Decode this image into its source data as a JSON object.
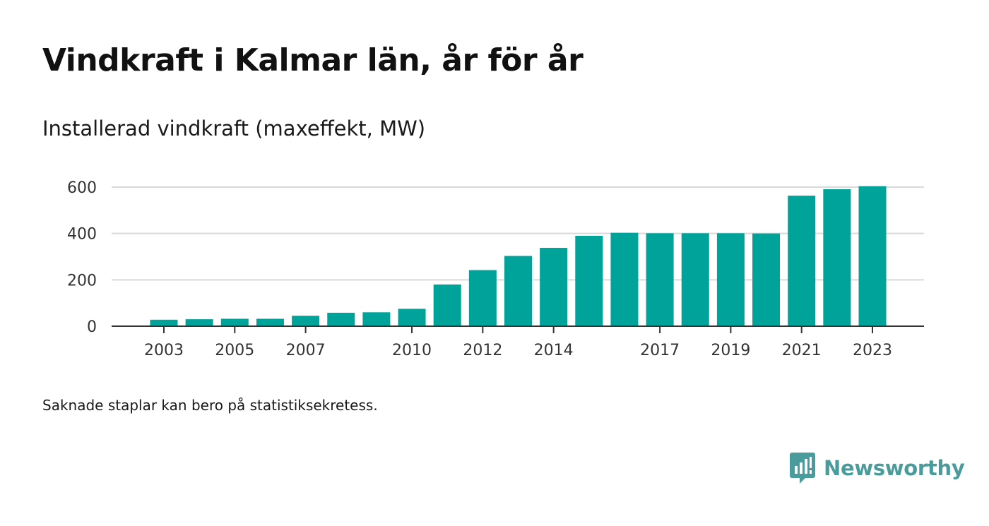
{
  "title": "Vindkraft i Kalmar län, år för år",
  "subtitle": "Installerad vindkraft (maxeffekt, MW)",
  "footnote": "Saknade staplar kan bero på statistiksekretess.",
  "brand": {
    "name": "Newsworthy",
    "icon": "newsworthy-logo-icon",
    "color": "#4a9b9b"
  },
  "chart_data": {
    "type": "bar",
    "title": "Vindkraft i Kalmar län, år för år",
    "subtitle": "Installerad vindkraft (maxeffekt, MW)",
    "xlabel": "",
    "ylabel": "",
    "x": [
      2003,
      2004,
      2005,
      2006,
      2007,
      2008,
      2009,
      2010,
      2011,
      2012,
      2013,
      2014,
      2015,
      2016,
      2017,
      2018,
      2019,
      2020,
      2021,
      2022,
      2023
    ],
    "values": [
      28,
      30,
      32,
      32,
      45,
      58,
      60,
      75,
      180,
      242,
      303,
      338,
      390,
      403,
      401,
      401,
      401,
      400,
      563,
      591,
      604
    ],
    "x_tick_labels": [
      2003,
      2005,
      2007,
      2010,
      2012,
      2014,
      2017,
      2019,
      2021,
      2023
    ],
    "y_ticks": [
      0,
      200,
      400,
      600
    ],
    "ylim": [
      0,
      600
    ],
    "grid": "horizontal",
    "bar_color": "#00a39a",
    "legend": "none"
  }
}
